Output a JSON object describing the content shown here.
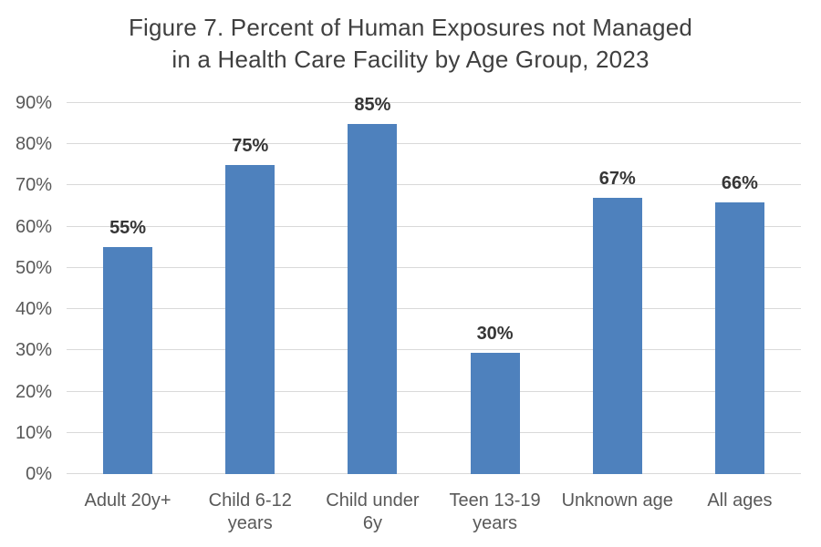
{
  "page": {
    "background": "#FFFFFF"
  },
  "chart_data": {
    "type": "bar",
    "title": "Figure 7. Percent of Human Exposures not Managed in a Health Care Facility by Age Group, 2023",
    "title_lines": [
      "Figure 7. Percent of Human Exposures not Managed",
      "in a Health Care Facility by Age Group, 2023"
    ],
    "categories": [
      "Adult 20y+",
      "Child 6-12 years",
      "Child under 6y",
      "Teen 13-19 years",
      "Unknown age",
      "All ages"
    ],
    "values": [
      55,
      75,
      85,
      30,
      67,
      66
    ],
    "value_labels": [
      "55%",
      "75%",
      "85%",
      "30%",
      "67%",
      "66%"
    ],
    "bar_render_values": [
      55,
      75,
      85,
      29.5,
      67,
      66
    ],
    "category_display_lines": [
      [
        "Adult 20y+"
      ],
      [
        "Child 6-12",
        "years"
      ],
      [
        "Child under",
        "6y"
      ],
      [
        "Teen 13-19",
        "years"
      ],
      [
        "Unknown age"
      ],
      [
        "All ages"
      ]
    ],
    "xlabel": "",
    "ylabel": "",
    "ylim": [
      0,
      90
    ],
    "ytick_step": 10,
    "ytick_labels": [
      "0%",
      "10%",
      "20%",
      "30%",
      "40%",
      "50%",
      "60%",
      "70%",
      "80%",
      "90%"
    ],
    "grid": true,
    "legend": false,
    "colors": {
      "bar": "#4E81BD",
      "gridline": "#D9D9D9",
      "axis_line": "#D9D9D9",
      "title_text": "#3F3F3F",
      "tick_text": "#595959",
      "value_label_text": "#363636",
      "background": "#FFFFFF"
    }
  }
}
